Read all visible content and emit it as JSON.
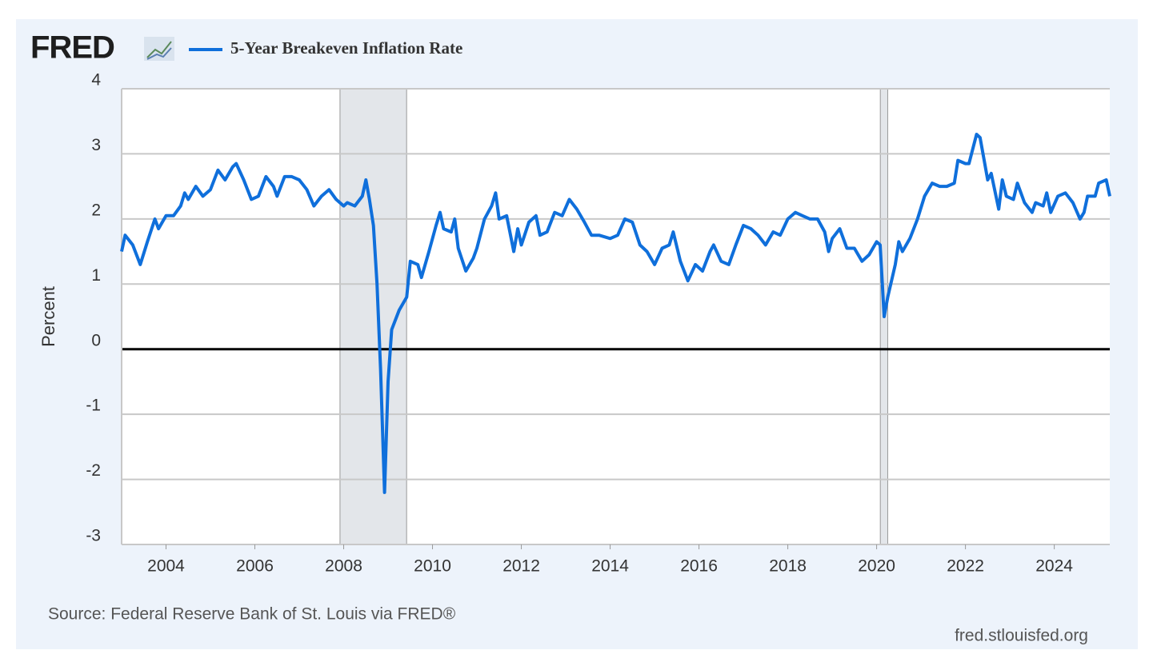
{
  "chart_data": {
    "type": "line",
    "logo": "FRED",
    "y_label": "Percent",
    "source": "Source: Federal Reserve Bank of St. Louis via FRED®",
    "site": "fred.stlouisfed.org",
    "recessions": [
      [
        2007.917,
        2009.417
      ],
      [
        2020.083,
        2020.25
      ]
    ],
    "xlim": [
      2003,
      2025.25
    ],
    "xticks": [
      2004,
      2006,
      2008,
      2010,
      2012,
      2014,
      2016,
      2018,
      2020,
      2022,
      2024
    ],
    "ylim": [
      -3,
      4
    ],
    "yticks": [
      -3,
      -2,
      -1,
      0,
      1,
      2,
      3,
      4
    ],
    "grid": true,
    "series": [
      {
        "name": "5-Year Breakeven Inflation Rate",
        "color": "#0f6fdb",
        "x": [
          2003.0,
          2003.08,
          2003.25,
          2003.42,
          2003.58,
          2003.75,
          2003.83,
          2004.0,
          2004.17,
          2004.33,
          2004.42,
          2004.5,
          2004.67,
          2004.83,
          2005.0,
          2005.17,
          2005.33,
          2005.5,
          2005.58,
          2005.75,
          2005.92,
          2006.08,
          2006.25,
          2006.42,
          2006.5,
          2006.67,
          2006.83,
          2007.0,
          2007.17,
          2007.33,
          2007.5,
          2007.67,
          2007.83,
          2008.0,
          2008.08,
          2008.25,
          2008.42,
          2008.5,
          2008.58,
          2008.67,
          2008.75,
          2008.83,
          2008.92,
          2009.0,
          2009.08,
          2009.25,
          2009.42,
          2009.5,
          2009.67,
          2009.75,
          2009.92,
          2010.08,
          2010.17,
          2010.25,
          2010.42,
          2010.5,
          2010.58,
          2010.75,
          2010.92,
          2011.0,
          2011.17,
          2011.33,
          2011.42,
          2011.5,
          2011.67,
          2011.83,
          2011.92,
          2012.0,
          2012.17,
          2012.33,
          2012.42,
          2012.58,
          2012.75,
          2012.92,
          2013.08,
          2013.25,
          2013.42,
          2013.58,
          2013.75,
          2014.0,
          2014.17,
          2014.33,
          2014.5,
          2014.67,
          2014.83,
          2015.0,
          2015.17,
          2015.33,
          2015.42,
          2015.58,
          2015.75,
          2015.92,
          2016.08,
          2016.25,
          2016.33,
          2016.5,
          2016.67,
          2016.83,
          2017.0,
          2017.17,
          2017.33,
          2017.5,
          2017.67,
          2017.83,
          2018.0,
          2018.17,
          2018.33,
          2018.5,
          2018.67,
          2018.83,
          2018.92,
          2019.0,
          2019.17,
          2019.33,
          2019.5,
          2019.67,
          2019.83,
          2020.0,
          2020.08,
          2020.17,
          2020.25,
          2020.42,
          2020.5,
          2020.58,
          2020.75,
          2020.92,
          2021.08,
          2021.25,
          2021.42,
          2021.58,
          2021.75,
          2021.83,
          2022.0,
          2022.08,
          2022.25,
          2022.33,
          2022.5,
          2022.58,
          2022.75,
          2022.83,
          2022.92,
          2023.08,
          2023.17,
          2023.33,
          2023.5,
          2023.58,
          2023.75,
          2023.83,
          2023.92,
          2024.08,
          2024.25,
          2024.42,
          2024.58,
          2024.67,
          2024.75,
          2024.92,
          2025.0,
          2025.17,
          2025.25
        ],
        "values": [
          1.5,
          1.75,
          1.6,
          1.3,
          1.65,
          2.0,
          1.85,
          2.05,
          2.05,
          2.2,
          2.4,
          2.3,
          2.5,
          2.35,
          2.45,
          2.75,
          2.6,
          2.8,
          2.85,
          2.6,
          2.3,
          2.35,
          2.65,
          2.5,
          2.35,
          2.65,
          2.65,
          2.6,
          2.45,
          2.2,
          2.35,
          2.45,
          2.3,
          2.2,
          2.25,
          2.2,
          2.35,
          2.6,
          2.3,
          1.9,
          1.0,
          -0.3,
          -2.2,
          -0.5,
          0.3,
          0.6,
          0.8,
          1.35,
          1.3,
          1.1,
          1.5,
          1.9,
          2.1,
          1.85,
          1.8,
          2.0,
          1.55,
          1.2,
          1.4,
          1.55,
          2.0,
          2.2,
          2.4,
          2.0,
          2.05,
          1.5,
          1.85,
          1.6,
          1.95,
          2.05,
          1.75,
          1.8,
          2.1,
          2.05,
          2.3,
          2.15,
          1.95,
          1.75,
          1.75,
          1.7,
          1.75,
          2.0,
          1.95,
          1.6,
          1.5,
          1.3,
          1.55,
          1.6,
          1.8,
          1.35,
          1.05,
          1.3,
          1.2,
          1.5,
          1.6,
          1.35,
          1.3,
          1.6,
          1.9,
          1.85,
          1.75,
          1.6,
          1.8,
          1.75,
          2.0,
          2.1,
          2.05,
          2.0,
          2.0,
          1.8,
          1.5,
          1.7,
          1.85,
          1.55,
          1.55,
          1.35,
          1.45,
          1.65,
          1.6,
          0.5,
          0.8,
          1.3,
          1.65,
          1.5,
          1.7,
          2.0,
          2.35,
          2.55,
          2.5,
          2.5,
          2.55,
          2.9,
          2.85,
          2.85,
          3.3,
          3.25,
          2.6,
          2.7,
          2.15,
          2.6,
          2.35,
          2.3,
          2.55,
          2.25,
          2.1,
          2.25,
          2.2,
          2.4,
          2.1,
          2.35,
          2.4,
          2.25,
          2.0,
          2.1,
          2.35,
          2.35,
          2.55,
          2.6,
          2.35
        ]
      }
    ]
  }
}
